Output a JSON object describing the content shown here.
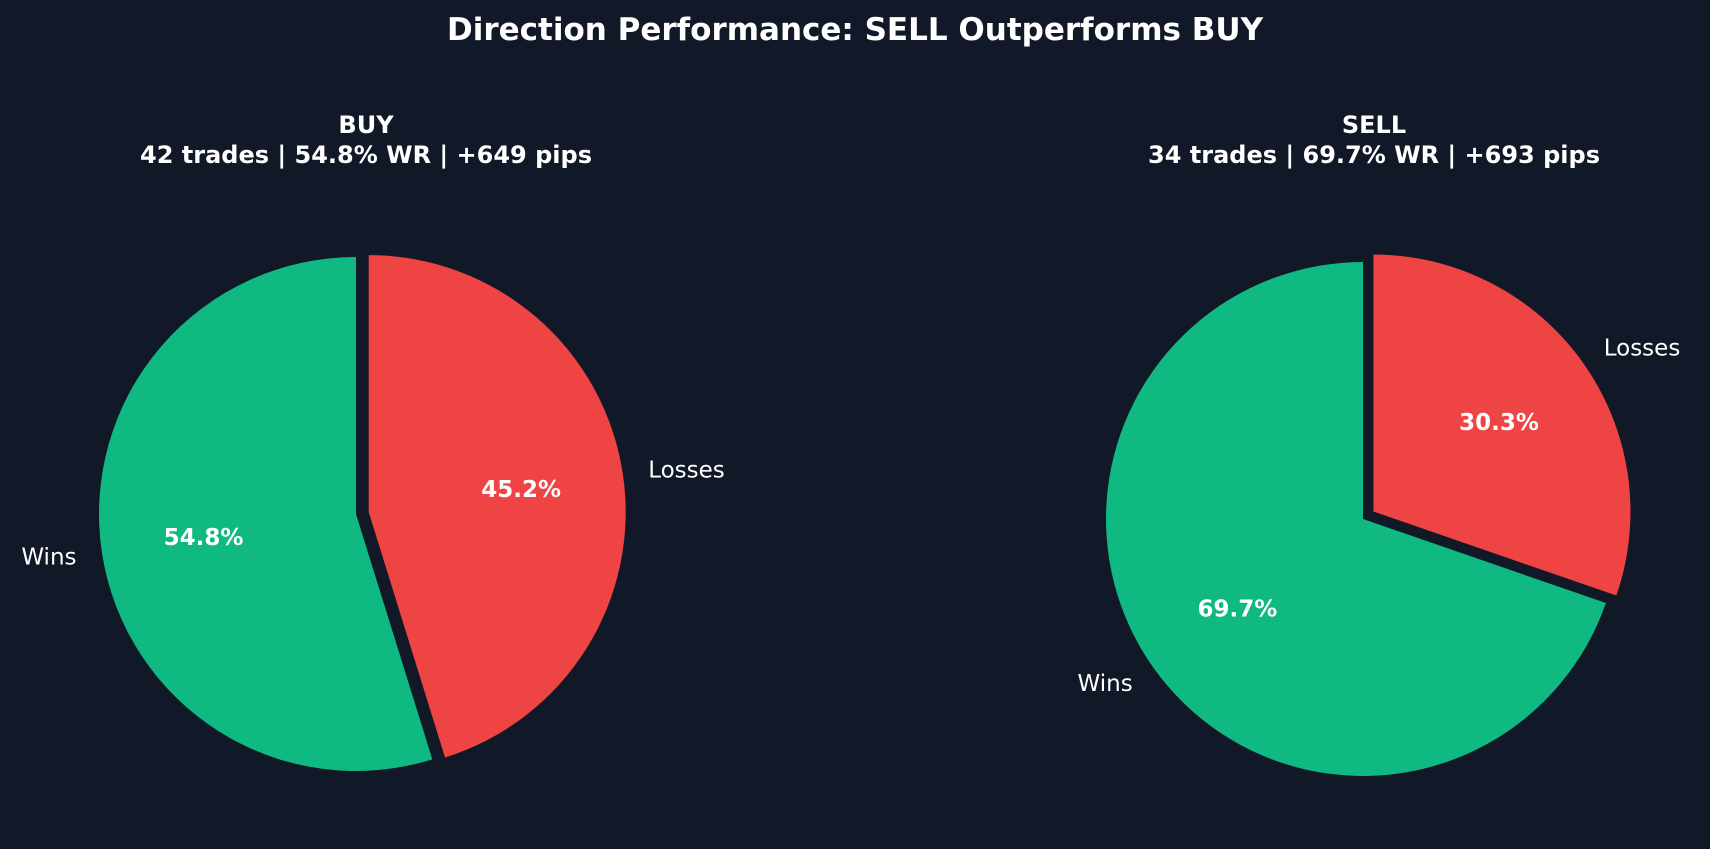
{
  "figure": {
    "title": "Direction Performance: SELL Outperforms BUY",
    "background": "#111827"
  },
  "chart_data": [
    {
      "type": "pie",
      "title": "BUY",
      "subtitle": "42 trades | 54.8% WR | +649 pips",
      "categories": [
        "Wins",
        "Losses"
      ],
      "values": [
        54.8,
        45.2
      ],
      "value_labels": [
        "54.8%",
        "45.2%"
      ],
      "colors": [
        "#10b981",
        "#ef4444"
      ],
      "start_angle_deg": 90,
      "direction": "counterclockwise",
      "explode": [
        0,
        0.05
      ]
    },
    {
      "type": "pie",
      "title": "SELL",
      "subtitle": "34 trades | 69.7% WR | +693 pips",
      "categories": [
        "Wins",
        "Losses"
      ],
      "values": [
        69.7,
        30.3
      ],
      "value_labels": [
        "69.7%",
        "30.3%"
      ],
      "colors": [
        "#10b981",
        "#ef4444"
      ],
      "start_angle_deg": 90,
      "direction": "counterclockwise",
      "explode": [
        0,
        0.05
      ]
    }
  ]
}
